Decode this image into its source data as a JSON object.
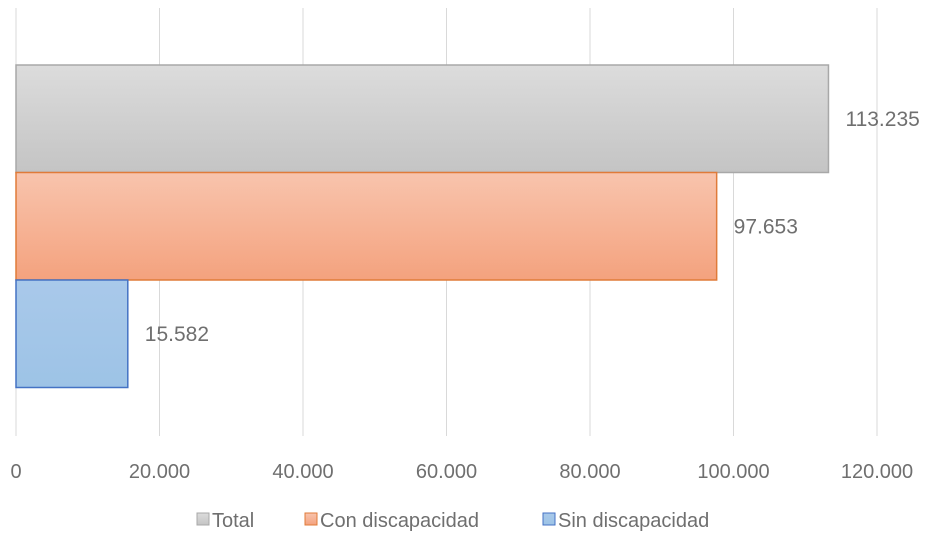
{
  "chart_data": {
    "type": "bar",
    "orientation": "horizontal",
    "title": "",
    "xlabel": "",
    "ylabel": "",
    "xlim": [
      0,
      120000
    ],
    "x_ticks": [
      0,
      20000,
      40000,
      60000,
      80000,
      100000,
      120000
    ],
    "x_tick_labels": [
      "0",
      "20.000",
      "40.000",
      "60.000",
      "80.000",
      "100.000",
      "120.000"
    ],
    "grid": "vertical",
    "legend_position": "bottom",
    "series": [
      {
        "name": "Total",
        "value": 113235,
        "label": "113.235",
        "color": "#c4c4c4",
        "color_light": "#dcdcdc",
        "border": "#a8a8a8"
      },
      {
        "name": "Con discapacidad",
        "value": 97653,
        "label": "97.653",
        "color": "#f4a27e",
        "color_light": "#f8c4ad",
        "border": "#e07b39"
      },
      {
        "name": "Sin discapacidad",
        "value": 15582,
        "label": "15.582",
        "color": "#9dc3e6",
        "color_light": "#a9c9ea",
        "border": "#4472c4"
      }
    ]
  }
}
